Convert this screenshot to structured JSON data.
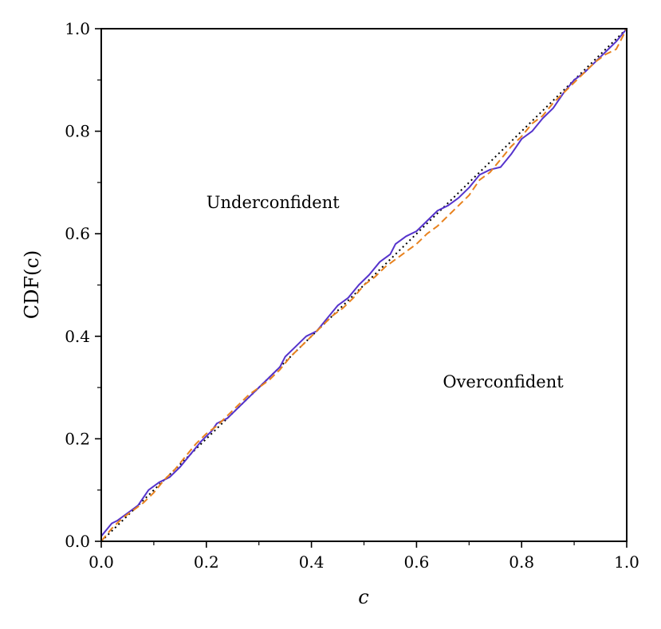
{
  "chart_data": {
    "type": "line",
    "xlabel": "c",
    "ylabel": "CDF(c)",
    "xlim": [
      0.0,
      1.0
    ],
    "ylim": [
      0.0,
      1.0
    ],
    "x_ticks": [
      "0.0",
      "0.2",
      "0.4",
      "0.6",
      "0.8",
      "1.0"
    ],
    "y_ticks": [
      "0.0",
      "0.2",
      "0.4",
      "0.6",
      "0.8",
      "1.0"
    ],
    "grid": false,
    "annotations": [
      {
        "text": "Underconfident",
        "x": 0.2,
        "y": 0.65
      },
      {
        "text": "Overconfident",
        "x": 0.65,
        "y": 0.3
      }
    ],
    "series": [
      {
        "color": "#000000",
        "style": "dotted",
        "x": [
          0.0,
          1.0
        ],
        "y": [
          0.0,
          1.0
        ]
      },
      {
        "color": "#5533cc",
        "style": "solid",
        "x": [
          0.0,
          0.02,
          0.03,
          0.05,
          0.07,
          0.08,
          0.09,
          0.11,
          0.13,
          0.15,
          0.17,
          0.19,
          0.21,
          0.22,
          0.24,
          0.26,
          0.28,
          0.3,
          0.32,
          0.34,
          0.35,
          0.37,
          0.39,
          0.41,
          0.43,
          0.45,
          0.47,
          0.49,
          0.51,
          0.53,
          0.55,
          0.56,
          0.58,
          0.6,
          0.62,
          0.64,
          0.66,
          0.68,
          0.7,
          0.72,
          0.74,
          0.76,
          0.78,
          0.8,
          0.82,
          0.84,
          0.86,
          0.88,
          0.9,
          0.92,
          0.94,
          0.96,
          0.98,
          1.0
        ],
        "y": [
          0.01,
          0.035,
          0.04,
          0.055,
          0.07,
          0.085,
          0.1,
          0.115,
          0.125,
          0.145,
          0.17,
          0.195,
          0.215,
          0.23,
          0.24,
          0.26,
          0.28,
          0.3,
          0.32,
          0.34,
          0.36,
          0.38,
          0.4,
          0.41,
          0.435,
          0.46,
          0.475,
          0.5,
          0.52,
          0.545,
          0.56,
          0.58,
          0.595,
          0.605,
          0.625,
          0.645,
          0.655,
          0.67,
          0.69,
          0.715,
          0.725,
          0.73,
          0.755,
          0.785,
          0.8,
          0.825,
          0.845,
          0.875,
          0.9,
          0.915,
          0.935,
          0.955,
          0.975,
          1.0
        ]
      },
      {
        "color": "#e8821e",
        "style": "dashed",
        "x": [
          0.0,
          0.02,
          0.04,
          0.06,
          0.08,
          0.1,
          0.12,
          0.14,
          0.16,
          0.18,
          0.2,
          0.22,
          0.24,
          0.26,
          0.28,
          0.3,
          0.32,
          0.34,
          0.36,
          0.38,
          0.4,
          0.42,
          0.44,
          0.46,
          0.48,
          0.5,
          0.52,
          0.54,
          0.56,
          0.58,
          0.6,
          0.62,
          0.64,
          0.66,
          0.68,
          0.7,
          0.72,
          0.74,
          0.76,
          0.78,
          0.8,
          0.82,
          0.84,
          0.86,
          0.88,
          0.9,
          0.92,
          0.94,
          0.96,
          0.98,
          1.0
        ],
        "y": [
          0.0,
          0.025,
          0.045,
          0.06,
          0.075,
          0.095,
          0.12,
          0.14,
          0.165,
          0.19,
          0.21,
          0.225,
          0.245,
          0.265,
          0.285,
          0.3,
          0.315,
          0.335,
          0.36,
          0.38,
          0.4,
          0.42,
          0.44,
          0.455,
          0.475,
          0.5,
          0.515,
          0.535,
          0.55,
          0.565,
          0.58,
          0.6,
          0.615,
          0.635,
          0.655,
          0.675,
          0.705,
          0.72,
          0.745,
          0.77,
          0.79,
          0.815,
          0.83,
          0.855,
          0.875,
          0.895,
          0.915,
          0.935,
          0.95,
          0.96,
          1.0
        ]
      }
    ]
  }
}
